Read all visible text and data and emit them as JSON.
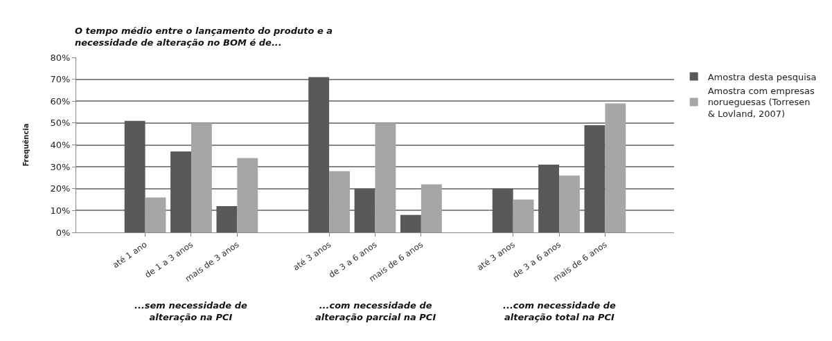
{
  "chart_data": {
    "type": "bar",
    "title": "O tempo médio entre o lançamento do produto e a necessidade de alteração no BOM é de...",
    "ylabel": "Frequência",
    "categories": [
      null,
      "até 1 ano",
      "de 1 a 3 anos",
      "mais de 3 anos",
      null,
      "até 3 anos",
      "de 3 a 6 anos",
      "mais de 6 anos",
      null,
      "até 3 anos",
      "de 3 a 6 anos",
      "mais de 6 anos",
      null
    ],
    "series": [
      {
        "name": "Amostra desta pesquisa",
        "color": "#595959",
        "values": [
          null,
          51,
          37,
          12,
          null,
          71,
          20,
          8,
          null,
          20,
          31,
          49,
          null
        ]
      },
      {
        "name": "Amostra com empresas norueguesas (Torresen & Lovland, 2007)",
        "color": "#a6a6a6",
        "values": [
          null,
          16,
          50,
          34,
          null,
          28,
          50,
          22,
          null,
          15,
          26,
          59,
          null
        ]
      }
    ],
    "annotations": [
      "...sem necessidade de alteração na PCI",
      "...com necessidade de alteração parcial na PCI",
      "...com necessidade de alteração total na PCI"
    ],
    "ylim": [
      0,
      80
    ],
    "yticks": [
      {
        "value": 0,
        "label": "0%"
      },
      {
        "value": 10,
        "label": "10%"
      },
      {
        "value": 20,
        "label": "20%"
      },
      {
        "value": 30,
        "label": "30%"
      },
      {
        "value": 40,
        "label": "40%"
      },
      {
        "value": 50,
        "label": "50%"
      },
      {
        "value": 60,
        "label": "60%"
      },
      {
        "value": 70,
        "label": "70%"
      },
      {
        "value": 80,
        "label": "80%"
      }
    ],
    "grid": "y",
    "legend": "right"
  }
}
